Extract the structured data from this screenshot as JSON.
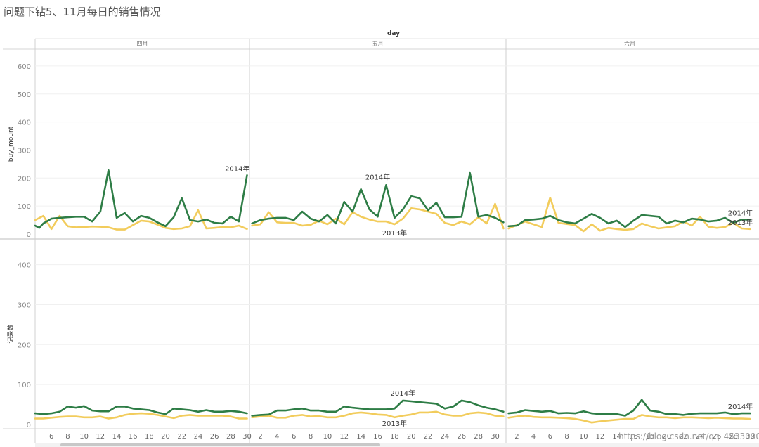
{
  "title": "问题下钻5、11月每日的销售情况",
  "watermark": "https://blog.csdn.net/qq_45330902",
  "chart_data": {
    "type": "line",
    "column_header": "day",
    "months": [
      "四月",
      "五月",
      "六月"
    ],
    "colors": {
      "2014年": "#2e7d46",
      "2013年": "#f2cc5c"
    },
    "panels": [
      {
        "ylabel": "buy_mount",
        "ylim": [
          0,
          650
        ],
        "yticks": [
          0,
          100,
          200,
          300,
          400,
          500,
          600
        ],
        "months": [
          {
            "name": "四月",
            "x": [
              4,
              5,
              6,
              7,
              8,
              9,
              10,
              11,
              12,
              13,
              14,
              15,
              16,
              17,
              18,
              19,
              20,
              21,
              22,
              23,
              24,
              25,
              26,
              27,
              28,
              29,
              30
            ],
            "series": [
              {
                "name": "2014年",
                "values": [
                  30,
                  22,
                  38,
                  55,
                  58,
                  60,
                  62,
                  62,
                  45,
                  80,
                  228,
                  58,
                  75,
                  45,
                  65,
                  58,
                  42,
                  28,
                  60,
                  128,
                  50,
                  45,
                  52,
                  40,
                  38,
                  62,
                  45,
                  210
                ],
                "x": [
                  4,
                  4.5,
                  5,
                  6,
                  7,
                  8,
                  9,
                  10,
                  11,
                  12,
                  13,
                  14,
                  15,
                  16,
                  17,
                  18,
                  19,
                  20,
                  21,
                  22,
                  23,
                  24,
                  25,
                  26,
                  27,
                  28,
                  29,
                  30
                ]
              },
              {
                "name": "2013年",
                "values": [
                  50,
                  65,
                  18,
                  65,
                  28,
                  24,
                  25,
                  27,
                  26,
                  24,
                  16,
                  16,
                  32,
                  48,
                  45,
                  34,
                  22,
                  18,
                  20,
                  28,
                  85,
                  20,
                  22,
                  25,
                  24,
                  30,
                  18
                ],
                "x": [
                  4,
                  5,
                  6,
                  7,
                  8,
                  9,
                  10,
                  11,
                  12,
                  13,
                  14,
                  15,
                  16,
                  17,
                  18,
                  19,
                  20,
                  21,
                  22,
                  23,
                  24,
                  25,
                  26,
                  27,
                  28,
                  29,
                  30
                ]
              }
            ],
            "labels": [
              {
                "text": "2014年",
                "x": 30,
                "y": 210
              }
            ]
          },
          {
            "name": "五月",
            "x": [
              1,
              2,
              3,
              4,
              5,
              6,
              7,
              8,
              9,
              10,
              11,
              12,
              13,
              14,
              15,
              16,
              17,
              18,
              19,
              20,
              21,
              22,
              23,
              24,
              25,
              26,
              27,
              28,
              29,
              30,
              31
            ],
            "series": [
              {
                "name": "2014年",
                "values": [
                  38,
                  50,
                  55,
                  58,
                  58,
                  50,
                  80,
                  55,
                  45,
                  68,
                  38,
                  115,
                  80,
                  160,
                  88,
                  62,
                  175,
                  58,
                  88,
                  135,
                  128,
                  85,
                  112,
                  60,
                  60,
                  62,
                  218,
                  62,
                  68,
                  58,
                  42
                ]
              },
              {
                "name": "2013年",
                "values": [
                  30,
                  35,
                  78,
                  42,
                  40,
                  40,
                  30,
                  33,
                  48,
                  35,
                  55,
                  35,
                  78,
                  62,
                  52,
                  45,
                  45,
                  35,
                  55,
                  92,
                  88,
                  80,
                  72,
                  40,
                  32,
                  45,
                  35,
                  60,
                  38,
                  108,
                  20
                ]
              }
            ],
            "labels": [
              {
                "text": "2014年",
                "x": 16,
                "y": 180
              },
              {
                "text": "2013年",
                "x": 18,
                "y": 0
              }
            ]
          },
          {
            "name": "六月",
            "x": [
              1,
              2,
              3,
              4,
              5,
              6,
              7,
              8,
              9,
              10,
              11,
              12,
              13,
              14,
              15,
              16,
              17,
              18,
              19,
              20,
              21,
              22,
              23,
              24,
              25,
              26,
              27,
              28,
              29,
              30
            ],
            "series": [
              {
                "name": "2014年",
                "values": [
                  28,
                  30,
                  50,
                  52,
                  55,
                  65,
                  50,
                  42,
                  38,
                  55,
                  72,
                  58,
                  38,
                  48,
                  25,
                  48,
                  68,
                  65,
                  62,
                  38,
                  48,
                  42,
                  55,
                  52,
                  45,
                  48,
                  58,
                  40,
                  52,
                  52
                ]
              },
              {
                "name": "2013年",
                "values": [
                  20,
                  32,
                  45,
                  35,
                  25,
                  130,
                  40,
                  36,
                  32,
                  10,
                  35,
                  12,
                  22,
                  18,
                  15,
                  18,
                  38,
                  28,
                  20,
                  24,
                  28,
                  45,
                  30,
                  62,
                  26,
                  22,
                  25,
                  40,
                  20,
                  18
                ]
              }
            ],
            "labels": [
              {
                "text": "2014年",
                "x": 30,
                "y": 52
              },
              {
                "text": "2013年",
                "x": 30,
                "y": 18
              }
            ]
          }
        ]
      },
      {
        "ylabel": "记录数",
        "ylim": [
          0,
          490
        ],
        "yticks": [
          0,
          100,
          200,
          300,
          400
        ],
        "months": [
          {
            "name": "四月",
            "x": [
              4,
              5,
              6,
              7,
              8,
              9,
              10,
              11,
              12,
              13,
              14,
              15,
              16,
              17,
              18,
              19,
              20,
              21,
              22,
              23,
              24,
              25,
              26,
              27,
              28,
              29,
              30
            ],
            "series": [
              {
                "name": "2014年",
                "values": [
                  28,
                  26,
                  28,
                  32,
                  45,
                  42,
                  46,
                  35,
                  33,
                  33,
                  45,
                  45,
                  40,
                  38,
                  36,
                  30,
                  26,
                  40,
                  38,
                  36,
                  32,
                  36,
                  32,
                  32,
                  34,
                  32,
                  28
                ]
              },
              {
                "name": "2013年",
                "values": [
                  15,
                  15,
                  17,
                  19,
                  20,
                  20,
                  18,
                  18,
                  20,
                  15,
                  18,
                  24,
                  27,
                  28,
                  27,
                  24,
                  20,
                  16,
                  22,
                  24,
                  22,
                  22,
                  22,
                  22,
                  20,
                  15,
                  15
                ]
              }
            ],
            "labels": []
          },
          {
            "name": "五月",
            "x": [
              1,
              2,
              3,
              4,
              5,
              6,
              7,
              8,
              9,
              10,
              11,
              12,
              13,
              14,
              15,
              16,
              17,
              18,
              19,
              20,
              21,
              22,
              23,
              24,
              25,
              26,
              27,
              28,
              29,
              30,
              31
            ],
            "series": [
              {
                "name": "2014年",
                "values": [
                  22,
                  24,
                  25,
                  35,
                  35,
                  38,
                  40,
                  35,
                  35,
                  32,
                  32,
                  45,
                  42,
                  40,
                  38,
                  38,
                  38,
                  40,
                  60,
                  58,
                  56,
                  54,
                  52,
                  40,
                  45,
                  60,
                  56,
                  48,
                  42,
                  38,
                  32
                ]
              },
              {
                "name": "2013年",
                "values": [
                  18,
                  20,
                  22,
                  17,
                  17,
                  22,
                  24,
                  20,
                  21,
                  18,
                  18,
                  22,
                  28,
                  30,
                  28,
                  25,
                  24,
                  18,
                  22,
                  25,
                  30,
                  30,
                  32,
                  25,
                  22,
                  22,
                  28,
                  30,
                  28,
                  22,
                  20
                ]
              }
            ],
            "labels": [
              {
                "text": "2014年",
                "x": 19,
                "y": 62
              },
              {
                "text": "2013年",
                "x": 18,
                "y": 0
              }
            ]
          },
          {
            "name": "六月",
            "x": [
              1,
              2,
              3,
              4,
              5,
              6,
              7,
              8,
              9,
              10,
              11,
              12,
              13,
              14,
              15,
              16,
              17,
              18,
              19,
              20,
              21,
              22,
              23,
              24,
              25,
              26,
              27,
              28,
              29,
              30
            ],
            "series": [
              {
                "name": "2014年",
                "values": [
                  28,
                  30,
                  36,
                  34,
                  32,
                  34,
                  28,
                  29,
                  28,
                  33,
                  28,
                  26,
                  27,
                  26,
                  22,
                  35,
                  62,
                  35,
                  32,
                  26,
                  26,
                  24,
                  27,
                  28,
                  28,
                  28,
                  30,
                  26,
                  28,
                  28
                ]
              },
              {
                "name": "2013年",
                "values": [
                  17,
                  20,
                  22,
                  19,
                  18,
                  18,
                  17,
                  16,
                  14,
                  10,
                  5,
                  8,
                  10,
                  12,
                  14,
                  14,
                  24,
                  20,
                  18,
                  18,
                  16,
                  18,
                  18,
                  17,
                  16,
                  17,
                  16,
                  15,
                  15,
                  14
                ]
              }
            ],
            "labels": [
              {
                "text": "2014年",
                "x": 30,
                "y": 28
              }
            ]
          }
        ]
      }
    ],
    "xticks": [
      [
        6,
        8,
        10,
        12,
        14,
        16,
        18,
        20,
        22,
        24,
        26,
        28,
        30
      ],
      [
        2,
        4,
        6,
        8,
        10,
        12,
        14,
        16,
        18,
        20,
        22,
        24,
        26,
        28,
        30
      ],
      [
        2,
        4,
        6,
        8,
        10,
        12,
        14,
        16,
        18,
        20,
        22,
        24,
        26,
        28,
        30
      ]
    ]
  }
}
